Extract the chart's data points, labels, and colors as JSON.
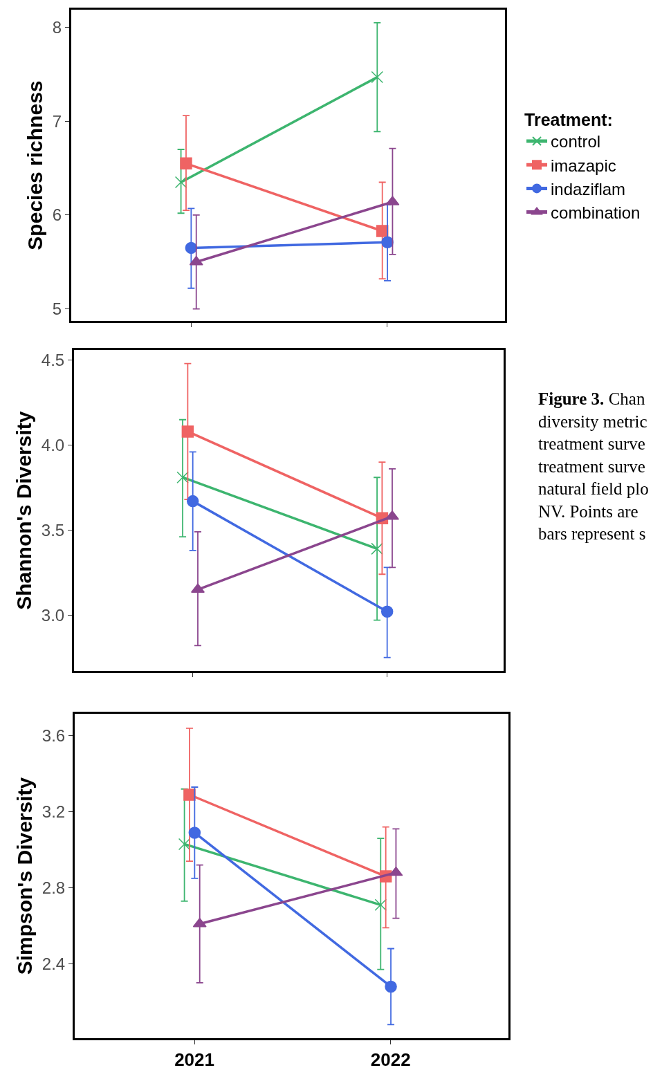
{
  "chart_data": [
    {
      "type": "line",
      "ylabel": "Species richness",
      "categories": [
        "2021",
        "2022"
      ],
      "ylim": [
        4.87,
        8.19
      ],
      "yticks": [
        5,
        6,
        7,
        8
      ],
      "tick_labels": "y",
      "legend": "right",
      "legend_title": "Treatment:",
      "series": [
        {
          "name": "control",
          "color": "#3db56f",
          "marker": "cross",
          "values": [
            6.35,
            7.47
          ],
          "errors": [
            [
              6.02,
              6.7
            ],
            [
              6.89,
              8.05
            ]
          ]
        },
        {
          "name": "imazapic",
          "color": "#ef6363",
          "marker": "square",
          "values": [
            6.55,
            5.83
          ],
          "errors": [
            [
              6.05,
              7.06
            ],
            [
              5.32,
              6.35
            ]
          ]
        },
        {
          "name": "indaziflam",
          "color": "#4169e1",
          "marker": "circle",
          "values": [
            5.65,
            5.71
          ],
          "errors": [
            [
              5.22,
              6.07
            ],
            [
              5.3,
              6.11
            ]
          ]
        },
        {
          "name": "combination",
          "color": "#8b468e",
          "marker": "triangle",
          "values": [
            5.5,
            6.14
          ],
          "errors": [
            [
              5.0,
              6.0
            ],
            [
              5.58,
              6.71
            ]
          ]
        }
      ]
    },
    {
      "type": "line",
      "ylabel": "Shannon's Diversity",
      "categories": [
        "2021",
        "2022"
      ],
      "ylim": [
        2.67,
        4.56
      ],
      "yticks": [
        {
          "value": 3.0,
          "label": "3.0"
        },
        3.5,
        {
          "value": 4.0,
          "label": "4.0"
        },
        4.5
      ],
      "tick_labels": "y",
      "legend": false,
      "annotations": [
        "Figure 3.",
        " Chan",
        "diversity metric",
        "treatment surve",
        "treatment surve",
        "natural field plo",
        "NV. Points are",
        "bars represent s"
      ],
      "series": [
        {
          "color": "#3db56f",
          "marker": "cross",
          "values": [
            3.81,
            3.39
          ],
          "errors": [
            [
              3.46,
              4.15
            ],
            [
              2.97,
              3.81
            ]
          ]
        },
        {
          "color": "#ef6363",
          "marker": "square",
          "values": [
            4.08,
            3.57
          ],
          "errors": [
            [
              3.68,
              4.48
            ],
            [
              3.24,
              3.9
            ]
          ]
        },
        {
          "color": "#4169e1",
          "marker": "circle",
          "values": [
            3.67,
            3.02
          ],
          "errors": [
            [
              3.38,
              3.96
            ],
            [
              2.75,
              3.28
            ]
          ]
        },
        {
          "color": "#8b468e",
          "marker": "triangle",
          "values": [
            3.15,
            3.58
          ],
          "errors": [
            [
              2.82,
              3.49
            ],
            [
              3.28,
              3.86
            ]
          ]
        }
      ]
    },
    {
      "type": "line",
      "ylabel": "Simpson's Diversity",
      "categories": [
        "2021",
        "2022"
      ],
      "ylim": [
        2.008,
        3.716
      ],
      "yticks": [
        2.4,
        2.8,
        3.2,
        3.6
      ],
      "legend": false,
      "series": [
        {
          "color": "#3db56f",
          "marker": "cross",
          "values": [
            3.03,
            2.71
          ],
          "errors": [
            [
              2.73,
              3.32
            ],
            [
              2.37,
              3.06
            ]
          ]
        },
        {
          "color": "#ef6363",
          "marker": "square",
          "values": [
            3.29,
            2.86
          ],
          "errors": [
            [
              2.94,
              3.64
            ],
            [
              2.59,
              3.12
            ]
          ]
        },
        {
          "color": "#4169e1",
          "marker": "circle",
          "values": [
            3.09,
            2.28
          ],
          "errors": [
            [
              2.85,
              3.33
            ],
            [
              2.08,
              2.48
            ]
          ]
        },
        {
          "color": "#8b468e",
          "marker": "triangle",
          "values": [
            2.61,
            2.88
          ],
          "errors": [
            [
              2.3,
              2.92
            ],
            [
              2.64,
              3.11
            ]
          ]
        }
      ]
    }
  ]
}
